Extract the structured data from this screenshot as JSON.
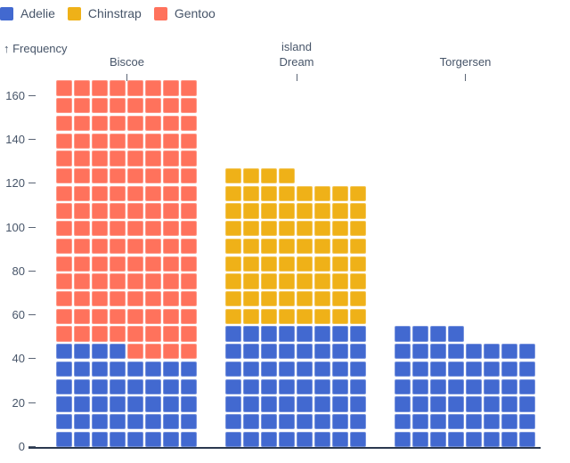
{
  "chart_data": {
    "type": "bar",
    "subtype": "waffle-unit-chart-stacked",
    "unit": 1,
    "cells_per_row": 8,
    "title": "",
    "xlabel": "island",
    "ylabel": "Frequency",
    "ylim": [
      0,
      168
    ],
    "y_ticks": [
      160,
      140,
      120,
      100,
      80,
      60,
      40,
      20,
      0
    ],
    "categories": [
      "Biscoe",
      "Dream",
      "Torgersen"
    ],
    "series": [
      {
        "name": "Adelie",
        "color": "#4269d0",
        "values": [
          44,
          56,
          52
        ]
      },
      {
        "name": "Chinstrap",
        "color": "#efb118",
        "values": [
          0,
          68,
          0
        ]
      },
      {
        "name": "Gentoo",
        "color": "#ff725c",
        "values": [
          124,
          0,
          0
        ]
      }
    ],
    "totals": [
      168,
      124,
      52
    ],
    "grid": false,
    "legend_position": "top-left"
  },
  "y_axis": {
    "label": "↑ Frequency"
  },
  "facet_axis": {
    "title": "island",
    "facets": [
      "Biscoe",
      "Dream",
      "Torgersen"
    ]
  },
  "colors": {
    "text": "#475569",
    "tick": "#5b6575",
    "baseline": "#2b3950",
    "background": "#ffffff"
  }
}
